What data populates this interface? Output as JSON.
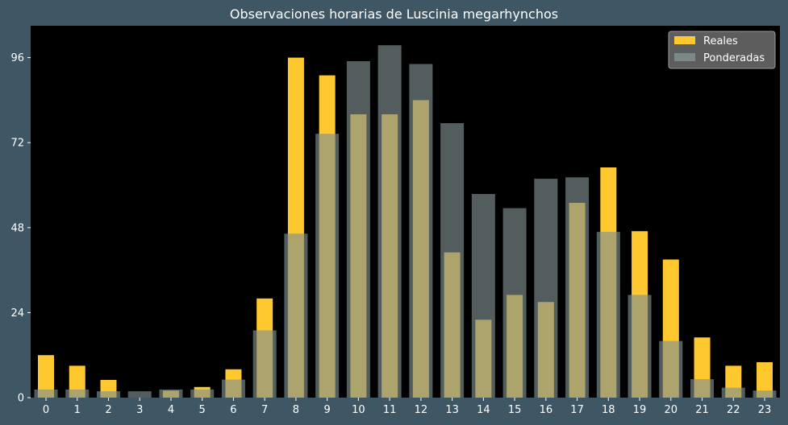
{
  "chart_data": {
    "type": "bar",
    "title": "Observaciones horarias de Luscinia megarhynchos",
    "xlabel": "",
    "ylabel": "",
    "categories": [
      "0",
      "1",
      "2",
      "3",
      "4",
      "5",
      "6",
      "7",
      "8",
      "9",
      "10",
      "11",
      "12",
      "13",
      "14",
      "15",
      "16",
      "17",
      "18",
      "19",
      "20",
      "21",
      "22",
      "23"
    ],
    "series": [
      {
        "name": "Reales",
        "color": "#ffc82e",
        "values": [
          12,
          9,
          5,
          0,
          2,
          3,
          8,
          28,
          96,
          91,
          80,
          80,
          84,
          41,
          22,
          29,
          27,
          55,
          65,
          47,
          39,
          17,
          9,
          10
        ]
      },
      {
        "name": "Ponderadas",
        "color": "#808f8f",
        "values": [
          2.3,
          2.3,
          1.8,
          1.8,
          2.3,
          2.3,
          5.1,
          19,
          46.3,
          74.5,
          95,
          99.5,
          94.2,
          77.5,
          57.5,
          53.5,
          61.8,
          62.2,
          46.8,
          29,
          16,
          5.2,
          2.8,
          2
        ]
      }
    ],
    "yticks": [
      0,
      24,
      48,
      72,
      96
    ],
    "ylim": [
      0,
      105
    ],
    "grid": false,
    "legend_position": "top-right"
  }
}
